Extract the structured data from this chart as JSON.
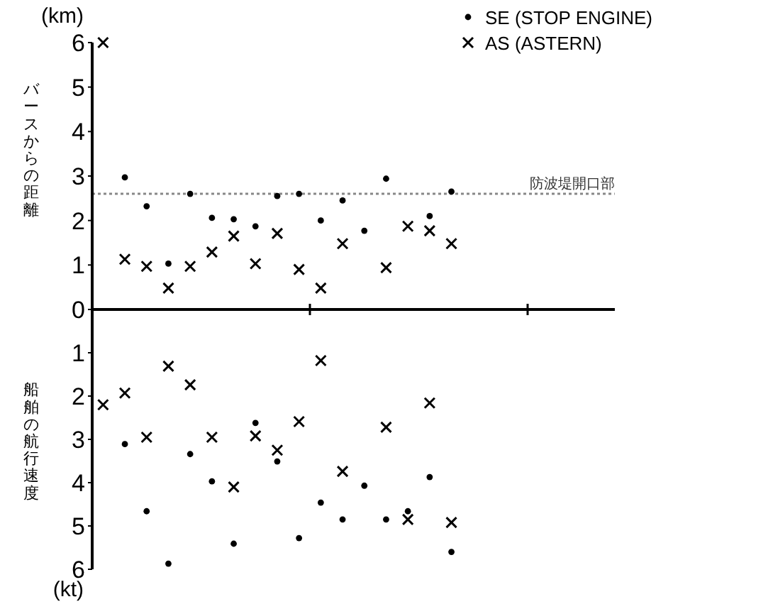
{
  "chart_data": [
    {
      "type": "scatter",
      "ylabel": "バースからの距離",
      "annotations": [
        "(km)"
      ],
      "categories": [
        null,
        null,
        null,
        null,
        null,
        null,
        null,
        null,
        null,
        null,
        null,
        null,
        null,
        null,
        null,
        null,
        null,
        null,
        null,
        null,
        null,
        null,
        null,
        null
      ],
      "ylim": [
        0,
        6
      ],
      "yticks": [
        0,
        1,
        2,
        3,
        4,
        5,
        6
      ],
      "legend": "top right",
      "ref_lines": [
        {
          "axis": "y",
          "value": 2.6,
          "label": "防波堤開口部",
          "color": "#888888",
          "line_style": "dotted"
        }
      ],
      "series": [
        {
          "name": "SE (STOP ENGINE)",
          "color": "#000000",
          "marker": "circle",
          "values": [
            null,
            2.97,
            2.32,
            1.03,
            2.6,
            2.06,
            2.03,
            1.87,
            2.55,
            2.6,
            2.0,
            2.45,
            1.77,
            2.94,
            null,
            2.1,
            2.65,
            null,
            null,
            null,
            null,
            null,
            null,
            null
          ]
        },
        {
          "name": "AS (ASTERN)",
          "color": "#000000",
          "marker": "cross",
          "values": [
            6.0,
            1.13,
            0.97,
            0.48,
            0.97,
            1.29,
            1.65,
            1.03,
            1.71,
            0.9,
            0.48,
            1.48,
            null,
            0.94,
            1.87,
            1.77,
            1.48,
            null,
            null,
            null,
            null,
            null,
            null,
            null
          ]
        }
      ]
    },
    {
      "type": "scatter",
      "ylabel": "船舶の航行速度",
      "annotations": [
        "(kt)"
      ],
      "categories": [
        null,
        null,
        null,
        null,
        null,
        null,
        null,
        null,
        null,
        null,
        null,
        null,
        null,
        null,
        null,
        null,
        null,
        null,
        null,
        null,
        null,
        null,
        null,
        null
      ],
      "ylim": [
        6,
        0
      ],
      "yticks": [
        1,
        2,
        3,
        4,
        5,
        6
      ],
      "series": [
        {
          "color": "#000000",
          "marker": "circle",
          "values": [
            null,
            3.11,
            4.66,
            5.87,
            3.34,
            3.97,
            5.41,
            2.62,
            3.51,
            5.28,
            4.46,
            4.85,
            4.07,
            4.85,
            4.66,
            3.87,
            5.6,
            null,
            null,
            null,
            null,
            null,
            null,
            null
          ]
        },
        {
          "color": "#000000",
          "marker": "cross",
          "values": [
            2.2,
            1.93,
            2.95,
            1.31,
            1.74,
            2.95,
            4.1,
            2.92,
            3.25,
            2.59,
            1.18,
            3.74,
            null,
            2.72,
            4.85,
            2.16,
            4.92,
            null,
            null,
            null,
            null,
            null,
            null,
            null
          ]
        }
      ]
    }
  ]
}
